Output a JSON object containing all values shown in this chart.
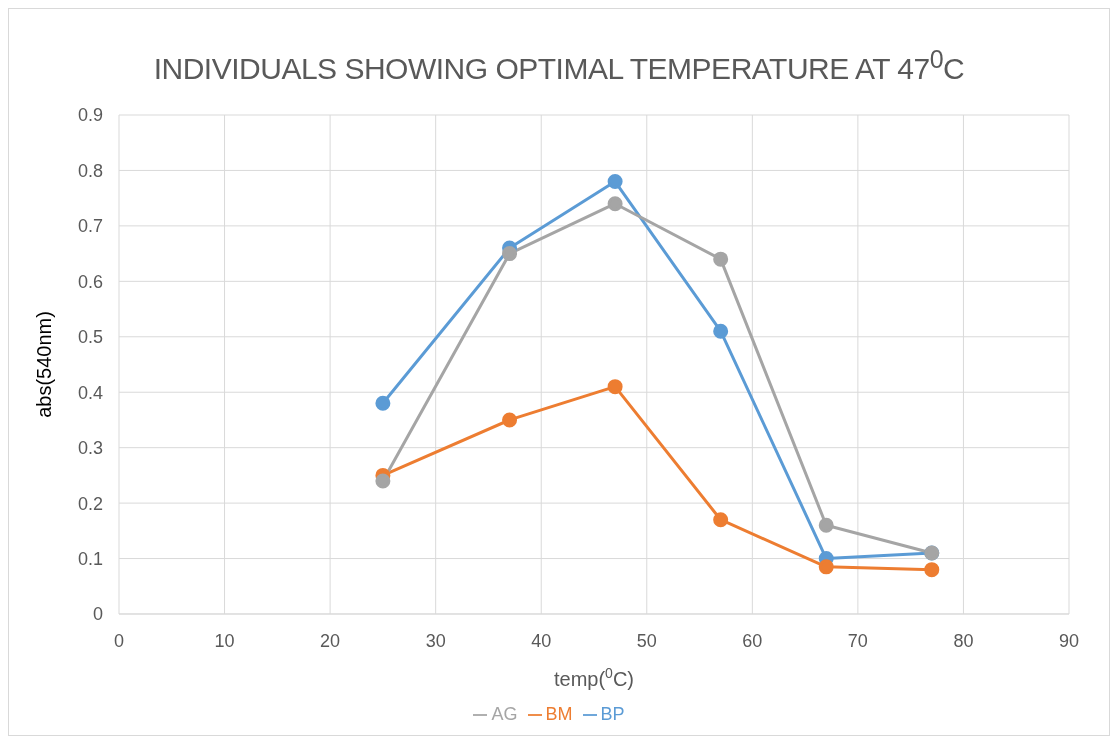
{
  "chart_data": {
    "type": "line",
    "title": "INDIVIDUALS SHOWING OPTIMAL TEMPERATURE AT 47$^{0}$C",
    "xlabel": "temp($^{0}$C)",
    "ylabel": "abs(540nm)",
    "x": [
      25,
      37,
      47,
      57,
      67,
      77
    ],
    "series": [
      {
        "name": "BP",
        "color": "#5b9bd5",
        "values": [
          0.38,
          0.66,
          0.78,
          0.51,
          0.1,
          0.11
        ]
      },
      {
        "name": "BM",
        "color": "#ed7d31",
        "values": [
          0.25,
          0.35,
          0.41,
          0.17,
          0.085,
          0.08
        ]
      },
      {
        "name": "AG",
        "color": "#a5a5a5",
        "values": [
          0.24,
          0.65,
          0.74,
          0.64,
          0.16,
          0.11
        ]
      }
    ],
    "xlim": [
      0,
      90
    ],
    "xticks": [
      0,
      10,
      20,
      30,
      40,
      50,
      60,
      70,
      80,
      90
    ],
    "ylim": [
      0,
      0.9
    ],
    "yticks": [
      0,
      0.1,
      0.2,
      0.3,
      0.4,
      0.5,
      0.6,
      0.7,
      0.8,
      0.9
    ],
    "grid": true,
    "legend": "bottom",
    "marker": "circle",
    "line_style": "solid"
  }
}
